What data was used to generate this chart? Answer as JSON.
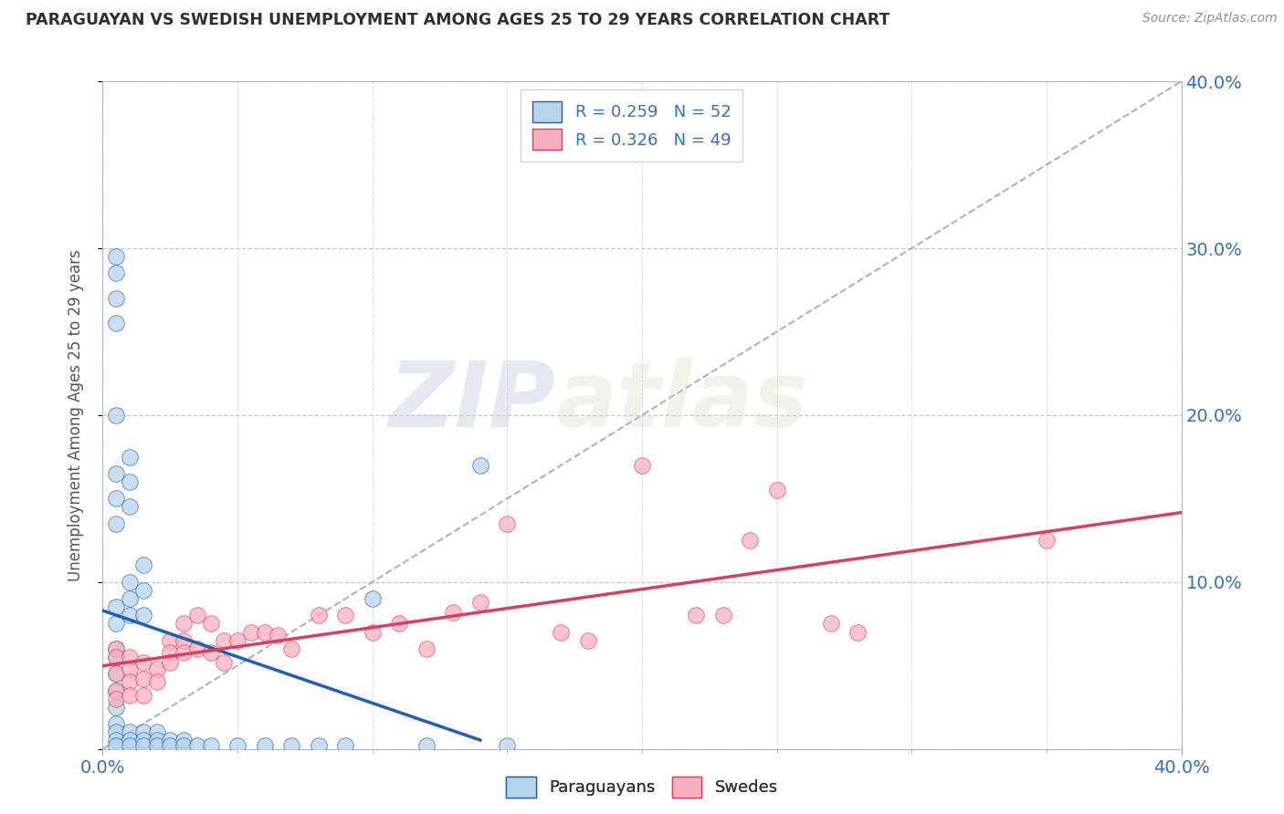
{
  "title": "PARAGUAYAN VS SWEDISH UNEMPLOYMENT AMONG AGES 25 TO 29 YEARS CORRELATION CHART",
  "source": "Source: ZipAtlas.com",
  "ylabel": "Unemployment Among Ages 25 to 29 years",
  "xlim": [
    0.0,
    0.4
  ],
  "ylim": [
    0.0,
    0.4
  ],
  "legend_r1": "R = 0.259",
  "legend_n1": "N = 52",
  "legend_r2": "R = 0.326",
  "legend_n2": "N = 49",
  "paraguayan_color": "#b8d4ec",
  "swedish_color": "#f8b0c0",
  "trend_paraguayan_color": "#2060b0",
  "trend_swedish_color": "#d84060",
  "diagonal_color": "#a0aac0",
  "watermark_zip": "ZIP",
  "watermark_atlas": "atlas",
  "paraguayan_scatter": [
    [
      0.005,
      0.285
    ],
    [
      0.005,
      0.295
    ],
    [
      0.005,
      0.27
    ],
    [
      0.005,
      0.255
    ],
    [
      0.005,
      0.2
    ],
    [
      0.005,
      0.165
    ],
    [
      0.005,
      0.15
    ],
    [
      0.005,
      0.135
    ],
    [
      0.01,
      0.175
    ],
    [
      0.01,
      0.16
    ],
    [
      0.01,
      0.145
    ],
    [
      0.005,
      0.085
    ],
    [
      0.005,
      0.075
    ],
    [
      0.005,
      0.06
    ],
    [
      0.005,
      0.055
    ],
    [
      0.005,
      0.045
    ],
    [
      0.01,
      0.1
    ],
    [
      0.01,
      0.09
    ],
    [
      0.01,
      0.08
    ],
    [
      0.015,
      0.11
    ],
    [
      0.015,
      0.095
    ],
    [
      0.015,
      0.08
    ],
    [
      0.005,
      0.035
    ],
    [
      0.005,
      0.025
    ],
    [
      0.005,
      0.015
    ],
    [
      0.005,
      0.01
    ],
    [
      0.005,
      0.005
    ],
    [
      0.005,
      0.002
    ],
    [
      0.01,
      0.01
    ],
    [
      0.01,
      0.005
    ],
    [
      0.01,
      0.002
    ],
    [
      0.015,
      0.01
    ],
    [
      0.015,
      0.005
    ],
    [
      0.015,
      0.002
    ],
    [
      0.02,
      0.01
    ],
    [
      0.02,
      0.005
    ],
    [
      0.02,
      0.002
    ],
    [
      0.025,
      0.005
    ],
    [
      0.025,
      0.002
    ],
    [
      0.03,
      0.005
    ],
    [
      0.03,
      0.002
    ],
    [
      0.035,
      0.002
    ],
    [
      0.04,
      0.002
    ],
    [
      0.05,
      0.002
    ],
    [
      0.06,
      0.002
    ],
    [
      0.07,
      0.002
    ],
    [
      0.08,
      0.002
    ],
    [
      0.09,
      0.002
    ],
    [
      0.1,
      0.09
    ],
    [
      0.12,
      0.002
    ],
    [
      0.14,
      0.17
    ],
    [
      0.15,
      0.002
    ]
  ],
  "swedish_scatter": [
    [
      0.005,
      0.06
    ],
    [
      0.005,
      0.055
    ],
    [
      0.005,
      0.045
    ],
    [
      0.005,
      0.035
    ],
    [
      0.005,
      0.03
    ],
    [
      0.01,
      0.055
    ],
    [
      0.01,
      0.048
    ],
    [
      0.01,
      0.04
    ],
    [
      0.01,
      0.032
    ],
    [
      0.015,
      0.052
    ],
    [
      0.015,
      0.042
    ],
    [
      0.015,
      0.032
    ],
    [
      0.02,
      0.048
    ],
    [
      0.02,
      0.04
    ],
    [
      0.025,
      0.065
    ],
    [
      0.025,
      0.058
    ],
    [
      0.025,
      0.052
    ],
    [
      0.03,
      0.075
    ],
    [
      0.03,
      0.065
    ],
    [
      0.03,
      0.058
    ],
    [
      0.035,
      0.08
    ],
    [
      0.035,
      0.06
    ],
    [
      0.04,
      0.075
    ],
    [
      0.04,
      0.058
    ],
    [
      0.045,
      0.065
    ],
    [
      0.045,
      0.052
    ],
    [
      0.05,
      0.065
    ],
    [
      0.055,
      0.07
    ],
    [
      0.06,
      0.07
    ],
    [
      0.065,
      0.068
    ],
    [
      0.07,
      0.06
    ],
    [
      0.08,
      0.08
    ],
    [
      0.09,
      0.08
    ],
    [
      0.1,
      0.07
    ],
    [
      0.11,
      0.075
    ],
    [
      0.12,
      0.06
    ],
    [
      0.13,
      0.082
    ],
    [
      0.14,
      0.088
    ],
    [
      0.15,
      0.135
    ],
    [
      0.17,
      0.07
    ],
    [
      0.18,
      0.065
    ],
    [
      0.2,
      0.17
    ],
    [
      0.22,
      0.08
    ],
    [
      0.23,
      0.08
    ],
    [
      0.24,
      0.125
    ],
    [
      0.25,
      0.155
    ],
    [
      0.27,
      0.075
    ],
    [
      0.28,
      0.07
    ],
    [
      0.35,
      0.125
    ]
  ],
  "background_color": "#ffffff",
  "grid_color": "#c0c8d8",
  "title_color": "#303030",
  "axis_label_color": "#3070c0",
  "source_color": "#909090"
}
